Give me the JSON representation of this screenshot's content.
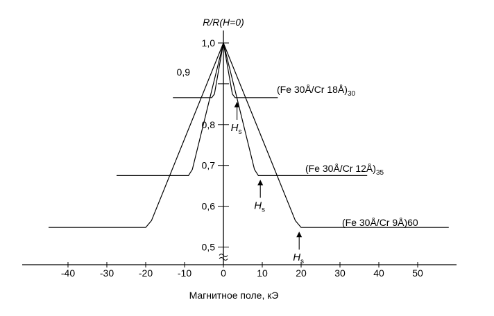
{
  "chart_data": {
    "type": "line",
    "ylabel": "R/R(H=0)",
    "xlabel": "Магнитное поле, кЭ",
    "x_ticks": [
      -40,
      -30,
      -20,
      -10,
      0,
      10,
      20,
      30,
      40,
      50
    ],
    "x_tick_labels": [
      "-40",
      "-30",
      "-20",
      "-10",
      "0",
      "10",
      "20",
      "30",
      "40",
      "50"
    ],
    "y_ticks": [
      0.5,
      0.6,
      0.7,
      0.8,
      0.9,
      1.0
    ],
    "y_tick_labels": [
      "0,5",
      "0,6",
      "0,7",
      "0,8",
      "0,9",
      "1,0"
    ],
    "xlim": [
      -52,
      60
    ],
    "ylim": [
      0.44,
      1.06
    ],
    "y_axis_break": true,
    "grid": false,
    "series": [
      {
        "label_main": "(Fe 30Å/Cr 18Å)",
        "label_sub": "30",
        "hs_label": "H",
        "hs_sub": "s",
        "hs_x": 3.5,
        "points": [
          [
            -13,
            0.866
          ],
          [
            -3,
            0.866
          ],
          [
            -2.3,
            0.875
          ],
          [
            0,
            1.0
          ],
          [
            2.3,
            0.875
          ],
          [
            3,
            0.866
          ],
          [
            14,
            0.866
          ]
        ]
      },
      {
        "label_main": "(Fe 30Å/Cr 12Å)",
        "label_sub": "35",
        "hs_label": "H",
        "hs_sub": "s",
        "hs_x": 9.5,
        "points": [
          [
            -27.5,
            0.675
          ],
          [
            -9,
            0.675
          ],
          [
            -8,
            0.69
          ],
          [
            0,
            1.0
          ],
          [
            8,
            0.69
          ],
          [
            9,
            0.675
          ],
          [
            37,
            0.675
          ]
        ]
      },
      {
        "label_main": "(Fe 30Å/Cr 9Å)60",
        "label_sub": "",
        "hs_label": "H",
        "hs_sub": "s",
        "hs_x": 19.5,
        "points": [
          [
            -45,
            0.548
          ],
          [
            -20,
            0.548
          ],
          [
            -18.5,
            0.565
          ],
          [
            0,
            1.0
          ],
          [
            18.5,
            0.565
          ],
          [
            20,
            0.548
          ],
          [
            58,
            0.548
          ]
        ]
      }
    ]
  }
}
